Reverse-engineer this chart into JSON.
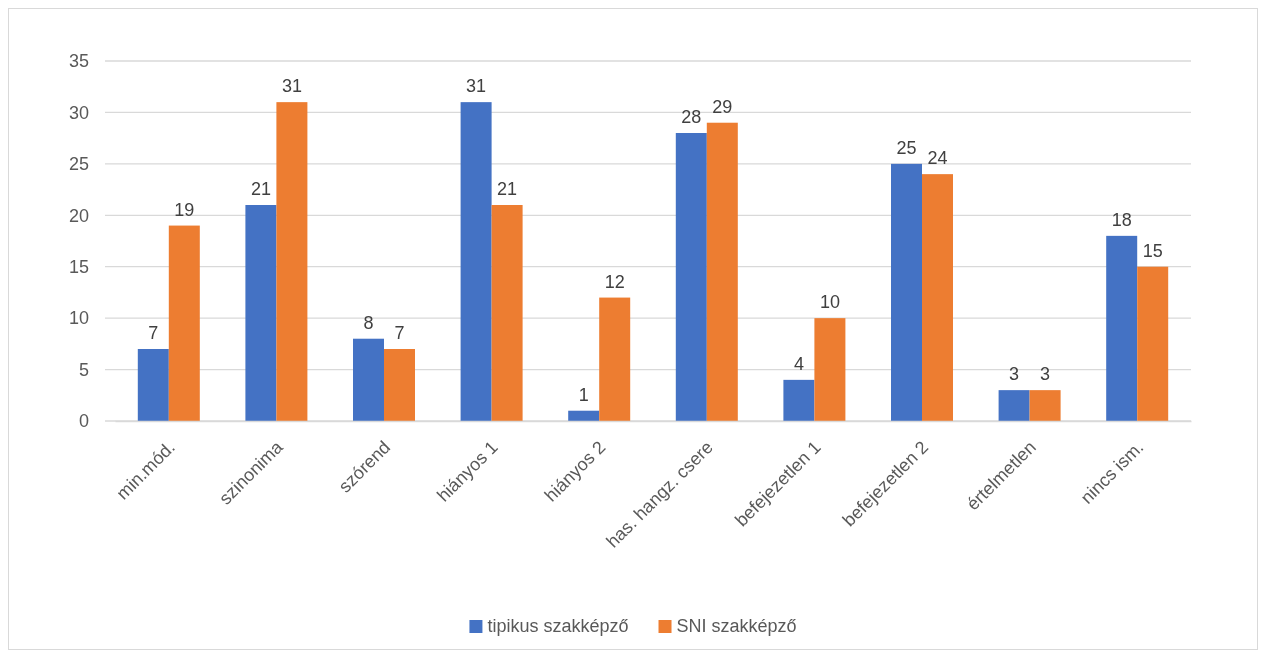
{
  "chart_data": {
    "type": "bar",
    "categories": [
      "min.mód.",
      "szinonima",
      "szórend",
      "hiányos 1",
      "hiányos 2",
      "has. hangz. csere",
      "befejezetlen 1",
      "befejezetlen 2",
      "értelmetlen",
      "nincs ism."
    ],
    "series": [
      {
        "name": "tipikus szakképző",
        "color": "#4472c4",
        "values": [
          7,
          21,
          8,
          31,
          1,
          28,
          4,
          25,
          3,
          18
        ]
      },
      {
        "name": "SNI szakképző",
        "color": "#ed7d31",
        "values": [
          19,
          31,
          7,
          21,
          12,
          29,
          10,
          24,
          3,
          15
        ]
      }
    ],
    "ylim": [
      0,
      35
    ],
    "yticks": [
      0,
      5,
      10,
      15,
      20,
      25,
      30,
      35
    ],
    "grid": "y",
    "legend": "bottom",
    "data_labels": true
  }
}
